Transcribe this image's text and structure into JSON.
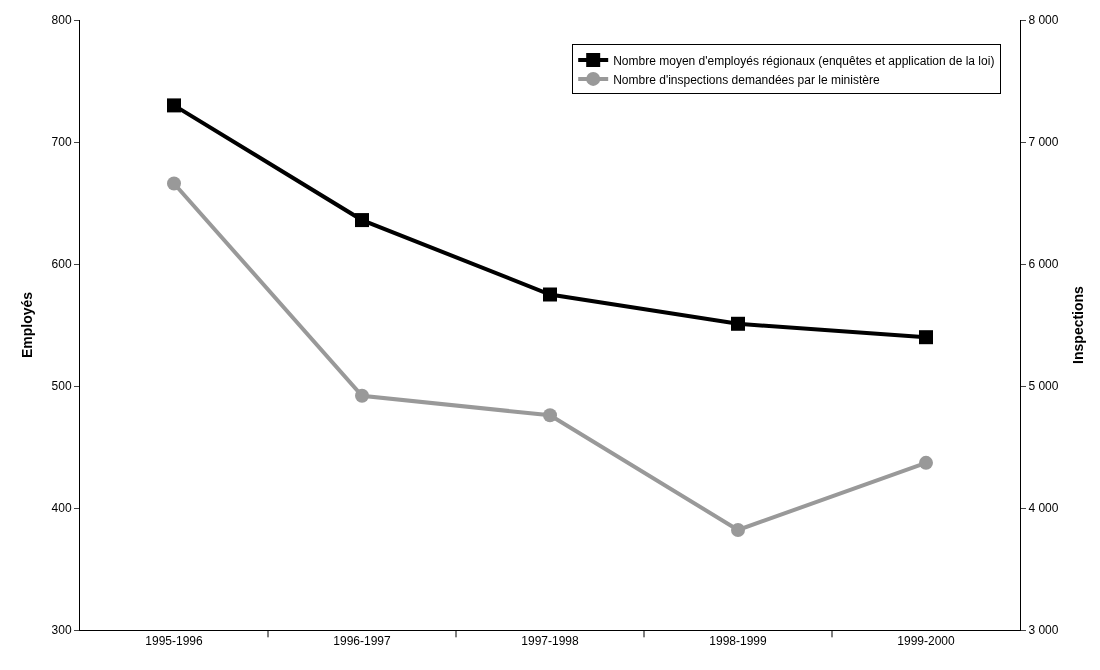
{
  "chart_data": {
    "type": "line",
    "ylabel": "Employés",
    "y2label": "Inspections",
    "categories": [
      "1995-1996",
      "1996-1997",
      "1997-1998",
      "1998-1999",
      "1999-2000"
    ],
    "series": [
      {
        "name": "Nombre moyen d'employés régionaux (enquêtes et application de la loi)",
        "color": "#000000",
        "marker": "square",
        "values": [
          730,
          636,
          575,
          551,
          540
        ]
      },
      {
        "name": "Nombre d'inspections demandées par le ministère",
        "color": "#999999",
        "marker": "circle",
        "axis": "y2",
        "values": [
          6660,
          4920,
          4760,
          3820,
          4370
        ]
      }
    ],
    "ylim": [
      300,
      800
    ],
    "yticks": [
      300,
      400,
      500,
      600,
      700,
      800
    ],
    "y2lim": [
      3000,
      8000
    ],
    "y2ticks": [
      {
        "value": 3000,
        "label": "3 000"
      },
      {
        "value": 4000,
        "label": "4 000"
      },
      {
        "value": 5000,
        "label": "5 000"
      },
      {
        "value": 6000,
        "label": "6 000"
      },
      {
        "value": 7000,
        "label": "7 000"
      },
      {
        "value": 8000,
        "label": "8 000"
      }
    ],
    "legend": "top right",
    "line_style": "solid"
  }
}
